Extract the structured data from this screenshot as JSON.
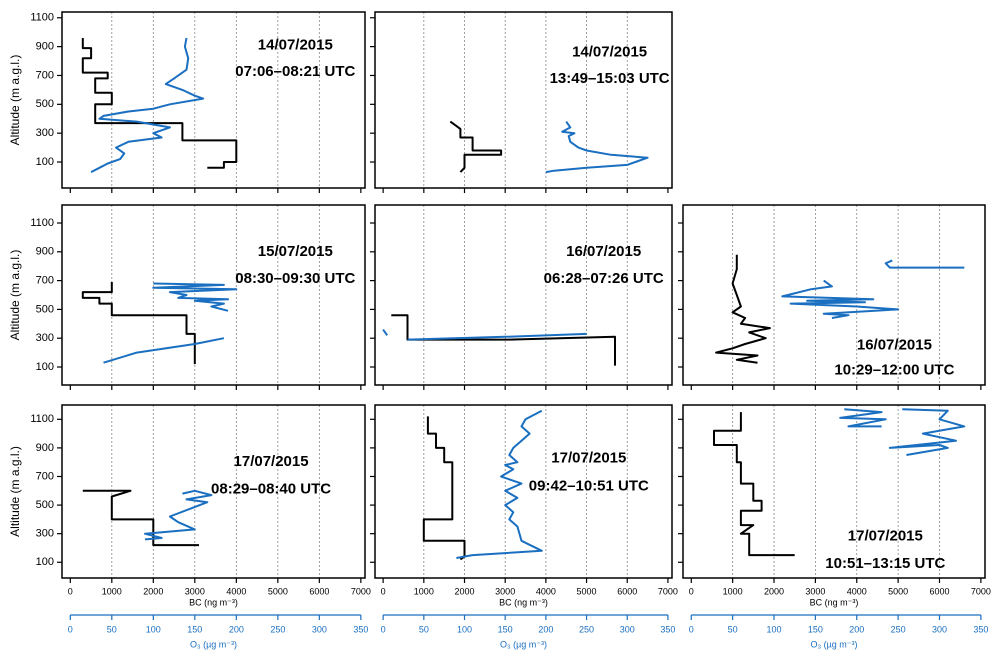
{
  "chart_data": [
    {
      "type": "line",
      "annotation": [
        "14/07/2015",
        "07:06–08:21 UTC"
      ],
      "ylabel": "Altitude (m a.g.l.)",
      "xlim": [
        -200,
        7100
      ],
      "xticks": [
        0,
        1000,
        2000,
        3000,
        4000,
        5000,
        6000,
        7000
      ],
      "x2lim": [
        -10,
        355
      ],
      "ylim": [
        -80,
        1140
      ],
      "yticks": [
        100,
        300,
        500,
        700,
        900,
        1100
      ],
      "grid": true,
      "series": [
        {
          "color": "#000000",
          "x": [
            300,
            300,
            500,
            500,
            300,
            300,
            900,
            900,
            600,
            600,
            1000,
            1000,
            600,
            600,
            2700,
            2700,
            4000,
            4000,
            3700,
            3700,
            3300
          ],
          "y": [
            960,
            890,
            890,
            820,
            820,
            720,
            720,
            680,
            680,
            580,
            580,
            500,
            500,
            370,
            370,
            250,
            250,
            100,
            100,
            60,
            60
          ]
        },
        {
          "color": "#1a6fc0",
          "axis": "x2",
          "x": [
            140,
            138,
            142,
            140,
            125,
            115,
            135,
            150,
            160,
            120,
            100,
            70,
            40,
            35,
            80,
            120,
            100,
            110,
            70,
            55,
            65,
            60,
            45,
            35,
            25
          ],
          "y": [
            960,
            900,
            820,
            740,
            680,
            640,
            600,
            560,
            540,
            500,
            470,
            450,
            420,
            400,
            380,
            340,
            300,
            270,
            240,
            200,
            160,
            120,
            90,
            60,
            30
          ]
        }
      ]
    },
    {
      "type": "line",
      "annotation": [
        "14/07/2015",
        "13:49–15:03 UTC"
      ],
      "xlim": [
        -200,
        7100
      ],
      "xticks": [
        0,
        1000,
        2000,
        3000,
        4000,
        5000,
        6000,
        7000
      ],
      "x2lim": [
        -10,
        355
      ],
      "ylim": [
        -80,
        1140
      ],
      "yticks": [
        100,
        300,
        500,
        700,
        900,
        1100
      ],
      "grid": true,
      "series": [
        {
          "color": "#000000",
          "x": [
            1650,
            1900,
            1900,
            2200,
            2200,
            2900,
            2900,
            2000,
            2000,
            1900
          ],
          "y": [
            380,
            330,
            270,
            270,
            180,
            180,
            150,
            150,
            60,
            30
          ]
        },
        {
          "color": "#1a6fc0",
          "axis": "x2",
          "x": [
            225,
            230,
            220,
            235,
            228,
            230,
            240,
            250,
            280,
            325,
            310,
            300,
            250,
            210,
            200
          ],
          "y": [
            380,
            340,
            310,
            300,
            280,
            240,
            200,
            180,
            150,
            130,
            100,
            80,
            60,
            40,
            30
          ]
        }
      ]
    },
    {
      "type": "line",
      "annotation": [
        "15/07/2015",
        "08:30–09:30 UTC"
      ],
      "ylabel": "Altitude (m a.g.l.)",
      "xlim": [
        -200,
        7100
      ],
      "xticks": [
        0,
        1000,
        2000,
        3000,
        4000,
        5000,
        6000,
        7000
      ],
      "x2lim": [
        -10,
        355
      ],
      "ylim": [
        -25,
        1225
      ],
      "yticks": [
        100,
        300,
        500,
        700,
        900,
        1100
      ],
      "grid": true,
      "series": [
        {
          "color": "#000000",
          "x": [
            1000,
            1000,
            300,
            300,
            700,
            700,
            1000,
            1000,
            2800,
            2800,
            3000,
            3000
          ],
          "y": [
            690,
            620,
            620,
            580,
            580,
            540,
            540,
            460,
            460,
            330,
            330,
            120
          ]
        },
        {
          "color": "#1a6fc0",
          "axis": "x2",
          "x": [
            100,
            185,
            100,
            200,
            120,
            140,
            130,
            190,
            150,
            185,
            170,
            190,
            null,
            185,
            150,
            80,
            40
          ],
          "y": [
            680,
            670,
            650,
            640,
            620,
            600,
            580,
            570,
            560,
            540,
            520,
            490,
            400,
            300,
            260,
            200,
            130
          ]
        }
      ]
    },
    {
      "type": "line",
      "annotation": [
        "16/07/2015",
        "06:28–07:26 UTC"
      ],
      "xlim": [
        -200,
        7100
      ],
      "xticks": [
        0,
        1000,
        2000,
        3000,
        4000,
        5000,
        6000,
        7000
      ],
      "x2lim": [
        -10,
        355
      ],
      "ylim": [
        -25,
        1225
      ],
      "yticks": [
        100,
        300,
        500,
        700,
        900,
        1100
      ],
      "grid": true,
      "series": [
        {
          "color": "#000000",
          "x": [
            200,
            600,
            600,
            3100,
            5700,
            5700
          ],
          "y": [
            460,
            460,
            290,
            290,
            310,
            110
          ]
        },
        {
          "color": "#1a6fc0",
          "axis": "x2",
          "x": [
            0,
            5,
            null,
            30,
            150,
            250
          ],
          "y": [
            360,
            320,
            300,
            290,
            310,
            330
          ]
        }
      ]
    },
    {
      "type": "line",
      "annotation": [
        "16/07/2015",
        "10:29–12:00 UTC"
      ],
      "xlim": [
        -200,
        7100
      ],
      "xticks": [
        0,
        1000,
        2000,
        3000,
        4000,
        5000,
        6000,
        7000
      ],
      "x2lim": [
        -10,
        355
      ],
      "ylim": [
        -25,
        1225
      ],
      "yticks": [
        100,
        300,
        500,
        700,
        900,
        1100
      ],
      "grid": true,
      "series": [
        {
          "color": "#000000",
          "x": [
            1100,
            1100,
            1000,
            1100,
            1200,
            1000,
            1300,
            1200,
            1900,
            1400,
            1800,
            1300,
            1000,
            600,
            1600,
            1100,
            1600
          ],
          "y": [
            880,
            780,
            680,
            600,
            520,
            480,
            440,
            400,
            370,
            340,
            300,
            260,
            230,
            200,
            180,
            150,
            130
          ]
        },
        {
          "color": "#1a6fc0",
          "axis": "x2",
          "x": [
            243,
            235,
            240,
            330,
            null,
            160,
            170,
            145,
            110,
            220,
            140,
            210,
            120,
            200,
            250,
            160,
            190,
            170
          ],
          "y": [
            840,
            820,
            790,
            790,
            720,
            700,
            660,
            640,
            590,
            570,
            560,
            550,
            540,
            520,
            500,
            470,
            460,
            440
          ]
        }
      ]
    },
    {
      "type": "line",
      "annotation": [
        "17/07/2015",
        "08:29–08:40 UTC"
      ],
      "ylabel": "Altitude (m a.g.l.)",
      "xlabel": "BC (ng m⁻³)",
      "x2label": "O₃ (µg m⁻³)",
      "xlim": [
        -200,
        7100
      ],
      "xticks": [
        0,
        1000,
        2000,
        3000,
        4000,
        5000,
        6000,
        7000
      ],
      "x2lim": [
        -10,
        355
      ],
      "x2ticks": [
        0,
        50,
        100,
        150,
        200,
        250,
        300,
        350
      ],
      "ylim": [
        -10,
        1200
      ],
      "yticks": [
        100,
        300,
        500,
        700,
        900,
        1100
      ],
      "grid": true,
      "series": [
        {
          "color": "#000000",
          "x": [
            300,
            1450,
            1000,
            1000,
            2000,
            2000,
            3100
          ],
          "y": [
            600,
            600,
            560,
            400,
            400,
            220,
            220
          ]
        },
        {
          "color": "#1a6fc0",
          "axis": "x2",
          "x": [
            135,
            150,
            170,
            140,
            165,
            120,
            130,
            150,
            90,
            110,
            90
          ],
          "y": [
            580,
            600,
            570,
            540,
            520,
            420,
            380,
            330,
            300,
            270,
            260
          ]
        }
      ]
    },
    {
      "type": "line",
      "annotation": [
        "17/07/2015",
        "09:42–10:51 UTC"
      ],
      "xlabel": "BC (ng m⁻³)",
      "x2label": "O₃ (µg m⁻³)",
      "xlim": [
        -200,
        7100
      ],
      "xticks": [
        0,
        1000,
        2000,
        3000,
        4000,
        5000,
        6000,
        7000
      ],
      "x2lim": [
        -10,
        355
      ],
      "x2ticks": [
        0,
        50,
        100,
        150,
        200,
        250,
        300,
        350
      ],
      "ylim": [
        -10,
        1200
      ],
      "yticks": [
        100,
        300,
        500,
        700,
        900,
        1100
      ],
      "grid": true,
      "series": [
        {
          "color": "#000000",
          "x": [
            1100,
            1100,
            1300,
            1300,
            1500,
            1500,
            1700,
            1700,
            1000,
            1000,
            2000,
            2000,
            1900
          ],
          "y": [
            1120,
            1000,
            1000,
            900,
            900,
            800,
            800,
            400,
            400,
            250,
            250,
            140,
            120
          ]
        },
        {
          "color": "#1a6fc0",
          "axis": "x2",
          "x": [
            195,
            175,
            170,
            180,
            170,
            160,
            155,
            165,
            150,
            160,
            145,
            170,
            150,
            165,
            150,
            160,
            155,
            165,
            170,
            195,
            110,
            90
          ],
          "y": [
            1160,
            1100,
            1050,
            1000,
            950,
            900,
            850,
            800,
            780,
            750,
            700,
            650,
            600,
            550,
            500,
            450,
            400,
            350,
            250,
            180,
            150,
            130
          ]
        }
      ]
    },
    {
      "type": "line",
      "annotation": [
        "17/07/2015",
        "10:51–13:15 UTC"
      ],
      "xlabel": "BC (ng m⁻³)",
      "x2label": "O₃ (µg m⁻³)",
      "xlim": [
        -200,
        7100
      ],
      "xticks": [
        0,
        1000,
        2000,
        3000,
        4000,
        5000,
        6000,
        7000
      ],
      "x2lim": [
        -10,
        355
      ],
      "x2ticks": [
        0,
        50,
        100,
        150,
        200,
        250,
        300,
        350
      ],
      "ylim": [
        -10,
        1200
      ],
      "yticks": [
        100,
        300,
        500,
        700,
        900,
        1100
      ],
      "grid": true,
      "series": [
        {
          "color": "#000000",
          "x": [
            1200,
            1200,
            550,
            550,
            1100,
            1100,
            1200,
            1200,
            1500,
            1500,
            1700,
            1700,
            1200,
            1200,
            1500,
            1200,
            1400,
            1400,
            2500
          ],
          "y": [
            1150,
            1020,
            1020,
            920,
            920,
            800,
            800,
            650,
            650,
            530,
            530,
            460,
            460,
            360,
            360,
            300,
            300,
            150,
            150
          ]
        },
        {
          "color": "#1a6fc0",
          "axis": "x2",
          "x": [
            185,
            230,
            180,
            235,
            190,
            230,
            null,
            255,
            310,
            300,
            330,
            280,
            320,
            240,
            300,
            310,
            260
          ],
          "y": [
            1170,
            1150,
            1110,
            1100,
            1050,
            1050,
            1100,
            1170,
            1160,
            1100,
            1050,
            1000,
            950,
            900,
            920,
            900,
            850
          ]
        }
      ]
    }
  ]
}
